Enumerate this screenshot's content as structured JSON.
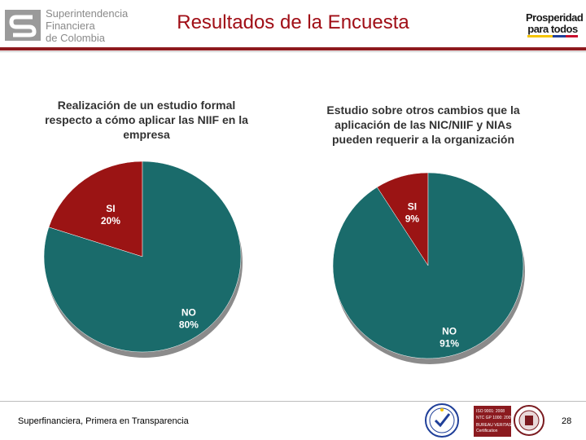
{
  "header": {
    "org_lines": [
      "Superintendencia",
      "Financiera",
      "de Colombia"
    ],
    "title": "Resultados de la Encuesta",
    "brand_lines": [
      "Prosperidad",
      "para todos"
    ]
  },
  "chart_data": [
    {
      "type": "pie",
      "title": "Realización de un estudio formal respecto a cómo aplicar las NIIF en la empresa",
      "categories": [
        "SI",
        "NO"
      ],
      "values": [
        20,
        80
      ],
      "labels": [
        "20%",
        "80%"
      ],
      "colors": [
        "#9b1414",
        "#1a6b6b"
      ]
    },
    {
      "type": "pie",
      "title": "Estudio sobre otros cambios que la aplicación de las NIC/NIIF y NIAs pueden requerir a la organización",
      "categories": [
        "SI",
        "NO"
      ],
      "values": [
        9,
        91
      ],
      "labels": [
        "9%",
        "91%"
      ],
      "colors": [
        "#9b1414",
        "#1a6b6b"
      ]
    }
  ],
  "footer": {
    "text": "Superfinanciera, Primera en Transparencia",
    "page": "28",
    "cert_lines": [
      "ISO 9001: 2008",
      "NTC GP 1000: 2009",
      "BUREAU VERITAS",
      "Certification"
    ]
  }
}
